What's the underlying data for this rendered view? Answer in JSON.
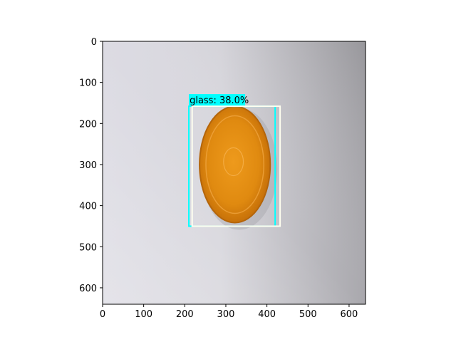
{
  "chart_data": {
    "type": "image",
    "title": "",
    "xlabel": "",
    "ylabel": "",
    "xlim": [
      0,
      640
    ],
    "ylim": [
      640,
      0
    ],
    "xticks": [
      0,
      100,
      200,
      300,
      400,
      500,
      600
    ],
    "yticks": [
      0,
      100,
      200,
      300,
      400,
      500,
      600
    ],
    "grid": false,
    "image_description": "photo of an orange round object on a grey-white surface",
    "detections": [
      {
        "label": "glass",
        "score": "38.0%",
        "text": "glass: 38.0%",
        "box_color": "#00ffff",
        "x": [
          210,
          420
        ],
        "y": [
          158,
          450
        ]
      },
      {
        "label": "",
        "score": "",
        "text": "",
        "box_color": "#fffff0",
        "x": [
          218,
          432
        ],
        "y": [
          158,
          450
        ]
      }
    ],
    "label_background_color": "#00ffff"
  }
}
